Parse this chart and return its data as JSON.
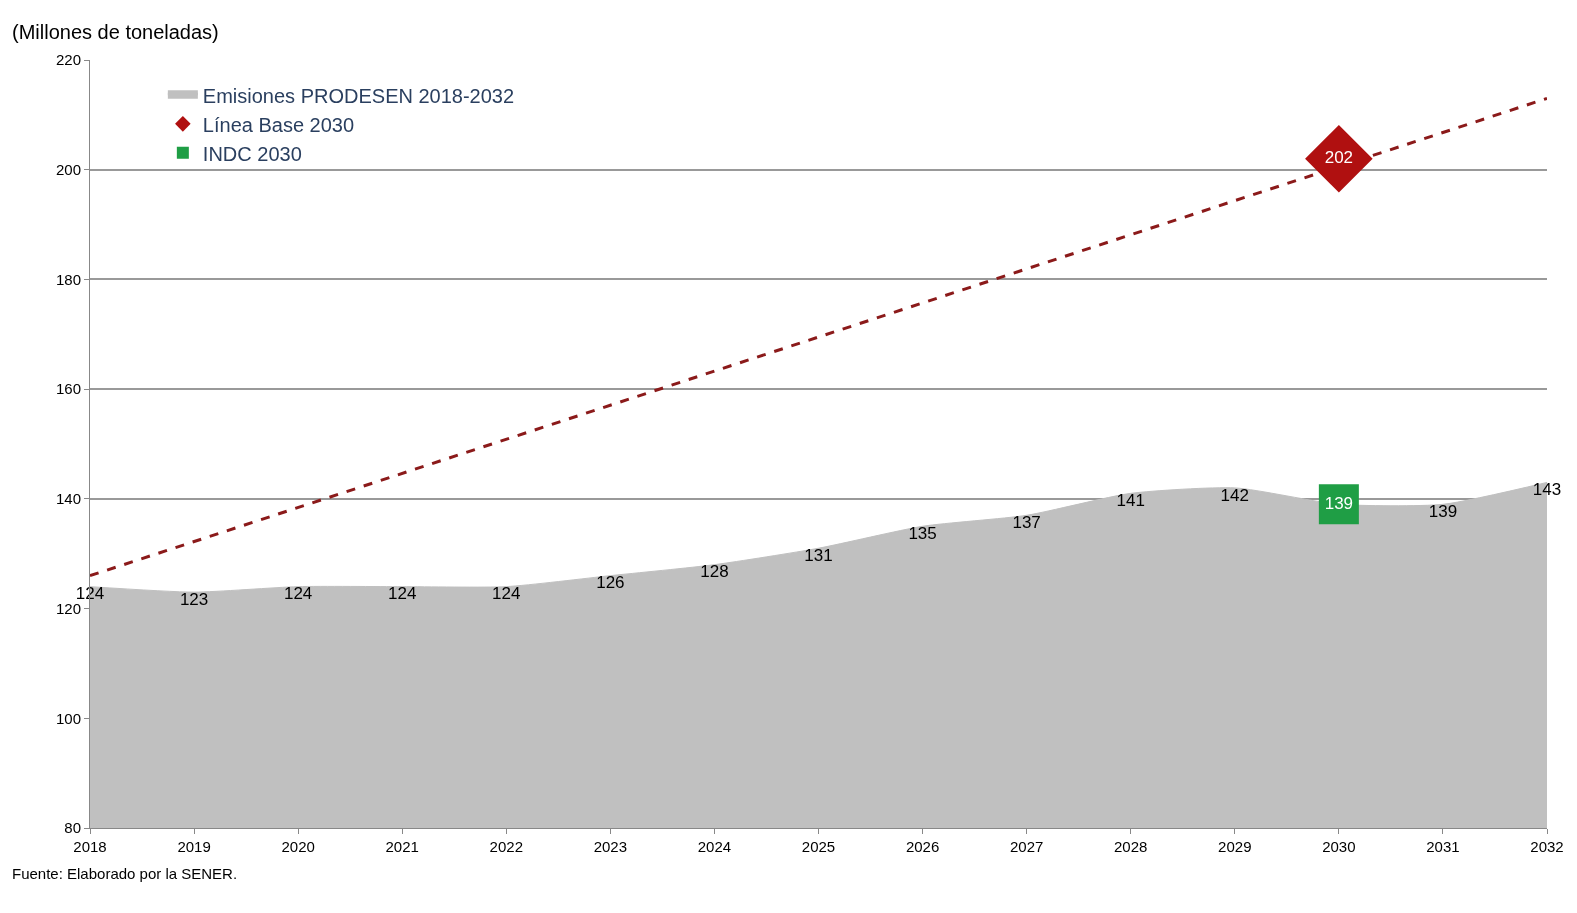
{
  "chart_data": {
    "type": "area",
    "ylabel": "(Millones de toneladas)",
    "x": [
      2018,
      2019,
      2020,
      2021,
      2022,
      2023,
      2024,
      2025,
      2026,
      2027,
      2028,
      2029,
      2030,
      2031,
      2032
    ],
    "series": [
      {
        "name": "Emisiones PRODESEN 2018-2032",
        "color": "#c0c0c0",
        "values": [
          124,
          123,
          124,
          124,
          124,
          126,
          128,
          131,
          135,
          137,
          141,
          142,
          139,
          139,
          143
        ],
        "value_labels": [
          "124",
          "123",
          "124",
          "124",
          "124",
          "126",
          "128",
          "131",
          "135",
          "137",
          "141",
          "142",
          null,
          "139",
          "143"
        ]
      },
      {
        "type": "line",
        "color": "#8b1a1a",
        "line_style": "dashed",
        "x": [
          2018,
          2032
        ],
        "values": [
          126,
          213
        ]
      },
      {
        "type": "scatter",
        "name": "Línea Base 2030",
        "color": "#b01010",
        "marker": "diamond",
        "x": [
          2030
        ],
        "values": [
          202
        ],
        "value_labels": [
          "202"
        ]
      },
      {
        "type": "scatter",
        "name": "INDC 2030",
        "color": "#1f9e45",
        "marker": "square",
        "x": [
          2030
        ],
        "values": [
          139
        ],
        "value_labels": [
          "139"
        ]
      }
    ],
    "xlim": [
      2018,
      2032
    ],
    "xticks": [
      2018,
      2019,
      2020,
      2021,
      2022,
      2023,
      2024,
      2025,
      2026,
      2027,
      2028,
      2029,
      2030,
      2031,
      2032
    ],
    "ylim": [
      80,
      220
    ],
    "yticks": [
      80,
      100,
      120,
      140,
      160,
      180,
      200,
      220
    ],
    "grid": "y",
    "legend": "top left",
    "annotations": [
      "Fuente: Elaborado por la SENER."
    ]
  }
}
